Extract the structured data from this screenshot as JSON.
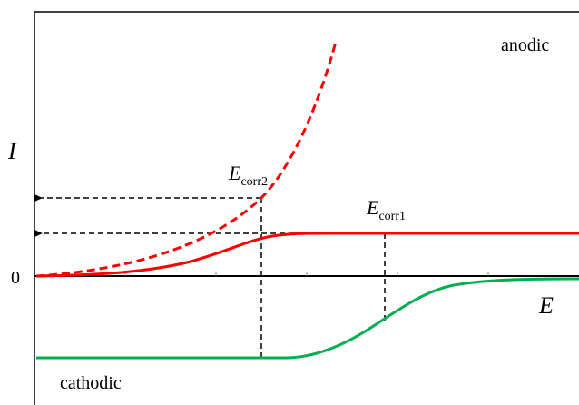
{
  "axes": {
    "y_label": "I",
    "x_label": "E",
    "zero_label": "0"
  },
  "regions": {
    "anodic": "anodic",
    "cathodic": "cathodic"
  },
  "annotations": {
    "ecorr2": {
      "main": "E",
      "sub": "corr2"
    },
    "ecorr1": {
      "main": "E",
      "sub": "corr1"
    }
  },
  "colors": {
    "anodic_curve": "#ff0000",
    "cathodic_curve": "#00b050",
    "axes": "#000000",
    "guides": "#000000"
  },
  "curves": [
    {
      "name": "anodic-curve-solid",
      "style": "solid",
      "color_key": "anodic_curve"
    },
    {
      "name": "anodic-curve-dashed",
      "style": "dashed",
      "color_key": "anodic_curve"
    },
    {
      "name": "cathodic-curve",
      "style": "solid",
      "color_key": "cathodic_curve"
    }
  ]
}
